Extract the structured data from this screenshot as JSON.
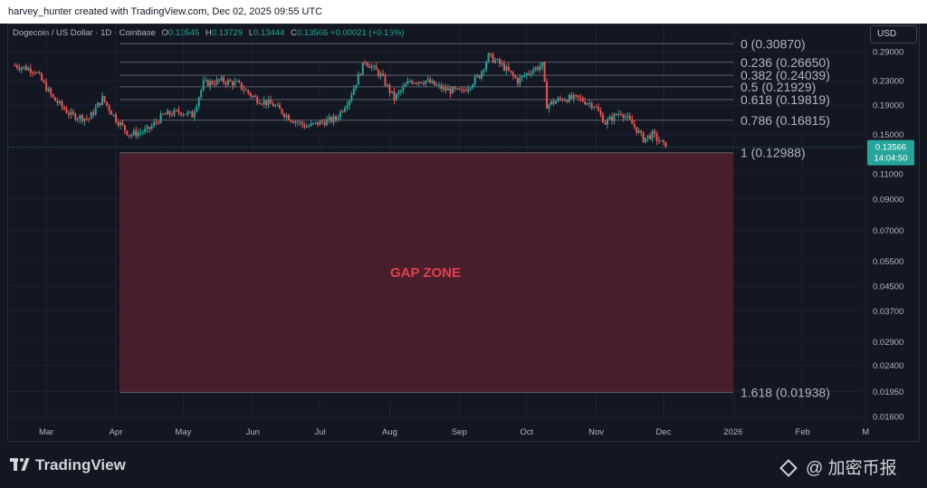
{
  "header": {
    "attribution": "harvey_hunter created with TradingView.com, Dec 02, 2025 09:55 UTC"
  },
  "symbol": {
    "name": "Dogecoin / US Dollar · 1D · Coinbase",
    "open_label": "O",
    "open": "0.13545",
    "high_label": "H",
    "high": "0.13729",
    "low_label": "L",
    "low": "0.13444",
    "close_label": "C",
    "close": "0.13566",
    "change": "+0.00021 (+0.16%)"
  },
  "currency_button": "USD",
  "price_badge": {
    "price": "0.13566",
    "countdown": "14:04:50"
  },
  "footer": {
    "logo_text": "TradingView",
    "watermark": "@ 加密币报"
  },
  "colors": {
    "up": "#26a69a",
    "down": "#ef5350",
    "gap_fill": "#4a1f2a",
    "gap_text": "#e0414f",
    "background": "#131722"
  },
  "chart_data": {
    "type": "candlestick",
    "price_axis_labels": [
      "0.29000",
      "0.23000",
      "0.19000",
      "0.15000",
      "0.13566",
      "0.11000",
      "0.09000",
      "0.07000",
      "0.05500",
      "0.04500",
      "0.03700",
      "0.02900",
      "0.02400",
      "0.01950",
      "0.01600"
    ],
    "price_axis_values": [
      0.29,
      0.23,
      0.19,
      0.15,
      0.11,
      0.09,
      0.07,
      0.055,
      0.045,
      0.037,
      0.029,
      0.024,
      0.0195,
      0.016
    ],
    "time_axis_labels": [
      "Mar",
      "Apr",
      "May",
      "Jun",
      "Jul",
      "Aug",
      "Sep",
      "Oct",
      "Nov",
      "Dec",
      "2026",
      "Feb",
      "M"
    ],
    "fib_levels": [
      {
        "ratio": "0",
        "price": 0.3087,
        "label": "0 (0.30870)"
      },
      {
        "ratio": "0.236",
        "price": 0.2665,
        "label": "0.236 (0.26650)"
      },
      {
        "ratio": "0.382",
        "price": 0.24039,
        "label": "0.382 (0.24039)"
      },
      {
        "ratio": "0.5",
        "price": 0.21929,
        "label": "0.5 (0.21929)"
      },
      {
        "ratio": "0.618",
        "price": 0.19819,
        "label": "0.618 (0.19819)"
      },
      {
        "ratio": "0.786",
        "price": 0.16815,
        "label": "0.786 (0.16815)"
      },
      {
        "ratio": "1",
        "price": 0.12988,
        "label": "1 (0.12988)"
      },
      {
        "ratio": "1.618",
        "price": 0.01938,
        "label": "1.618 (0.01938)"
      }
    ],
    "gap_zone": {
      "label": "GAP ZONE",
      "top_price": 0.12988,
      "bottom_price": 0.01938
    },
    "price_path": [
      [
        "Feb 15",
        0.26
      ],
      [
        "Feb 24",
        0.25
      ],
      [
        "Mar 04",
        0.2
      ],
      [
        "Mar 12",
        0.175
      ],
      [
        "Mar 20",
        0.17
      ],
      [
        "Mar 26",
        0.2
      ],
      [
        "Apr 01",
        0.17
      ],
      [
        "Apr 07",
        0.15
      ],
      [
        "Apr 15",
        0.155
      ],
      [
        "Apr 22",
        0.175
      ],
      [
        "Apr 30",
        0.18
      ],
      [
        "May 05",
        0.175
      ],
      [
        "May 10",
        0.225
      ],
      [
        "May 18",
        0.23
      ],
      [
        "May 25",
        0.225
      ],
      [
        "Jun 02",
        0.2
      ],
      [
        "Jun 10",
        0.19
      ],
      [
        "Jun 18",
        0.17
      ],
      [
        "Jun 25",
        0.16
      ],
      [
        "Jul 01",
        0.165
      ],
      [
        "Jul 08",
        0.17
      ],
      [
        "Jul 14",
        0.2
      ],
      [
        "Jul 21",
        0.27
      ],
      [
        "Jul 28",
        0.24
      ],
      [
        "Aug 03",
        0.2
      ],
      [
        "Aug 10",
        0.23
      ],
      [
        "Aug 17",
        0.23
      ],
      [
        "Aug 25",
        0.215
      ],
      [
        "Sep 02",
        0.21
      ],
      [
        "Sep 10",
        0.24
      ],
      [
        "Sep 14",
        0.28
      ],
      [
        "Sep 20",
        0.26
      ],
      [
        "Sep 27",
        0.23
      ],
      [
        "Oct 03",
        0.25
      ],
      [
        "Oct 08",
        0.26
      ],
      [
        "Oct 10",
        0.19
      ],
      [
        "Oct 17",
        0.2
      ],
      [
        "Oct 24",
        0.2
      ],
      [
        "Oct 31",
        0.19
      ],
      [
        "Nov 05",
        0.165
      ],
      [
        "Nov 12",
        0.18
      ],
      [
        "Nov 18",
        0.16
      ],
      [
        "Nov 22",
        0.145
      ],
      [
        "Nov 26",
        0.15
      ],
      [
        "Dec 02",
        0.13566
      ]
    ]
  }
}
